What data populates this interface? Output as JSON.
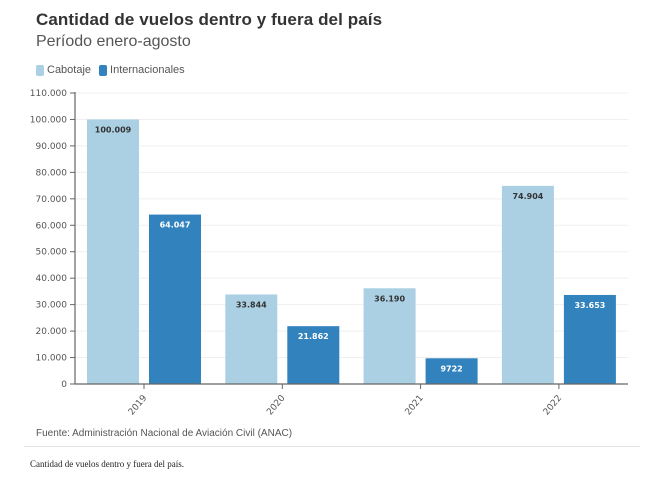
{
  "chart_data": {
    "type": "bar",
    "title": "Cantidad de vuelos dentro y fuera del país",
    "subtitle": "Período enero-agosto",
    "categories": [
      "2019",
      "2020",
      "2021",
      "2022"
    ],
    "series": [
      {
        "name": "Cabotaje",
        "color": "#abd0e4",
        "label_color": "#333333",
        "values": [
          100009,
          33844,
          36190,
          74904
        ],
        "labels": [
          "100.009",
          "33.844",
          "36.190",
          "74.904"
        ]
      },
      {
        "name": "Internacionales",
        "color": "#3282bd",
        "label_color": "#ffffff",
        "values": [
          64047,
          21862,
          9722,
          33653
        ],
        "labels": [
          "64.047",
          "21.862",
          "9722",
          "33.653"
        ]
      }
    ],
    "xlabel": "",
    "ylabel": "",
    "ylim": [
      0,
      110000
    ],
    "yticks": [
      0,
      10000,
      20000,
      30000,
      40000,
      50000,
      60000,
      70000,
      80000,
      90000,
      100000,
      110000
    ],
    "ytick_labels": [
      "0",
      "10.000",
      "20.000",
      "30.000",
      "40.000",
      "50.000",
      "60.000",
      "70.000",
      "80.000",
      "90.000",
      "100.000",
      "110.000"
    ],
    "grid": true,
    "legend_position": "top-left",
    "source": "Fuente: Administración Nacional de Aviación Civil (ANAC)"
  },
  "caption": "Cantidad de vuelos dentro y fuera del país."
}
